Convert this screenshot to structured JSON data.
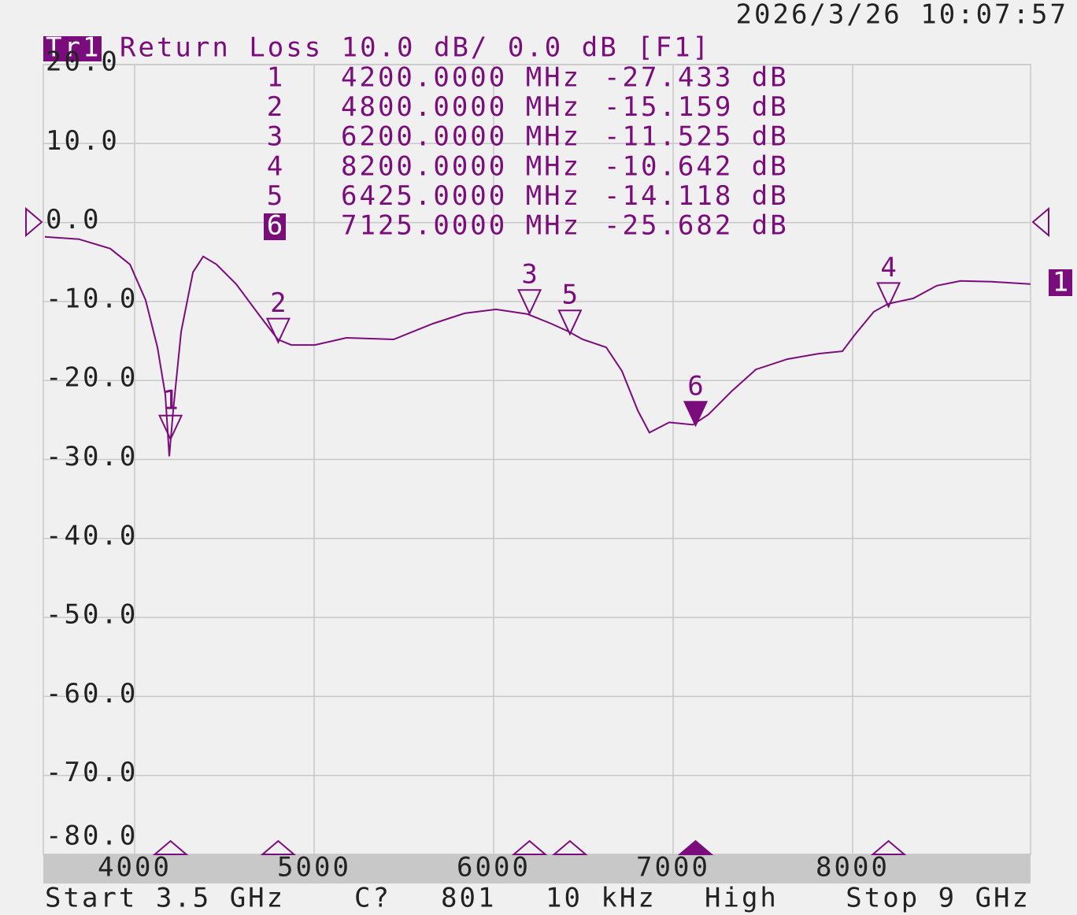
{
  "chart_data": {
    "type": "line",
    "timestamp": "2026/3/26 10:07:57",
    "trace_name": "Tr1",
    "title": "Return Loss 10.0 dB/ 0.0 dB [F1]",
    "trace_label": "1",
    "color": "#7b0c7b",
    "grid": true,
    "xlim": [
      3500,
      9000
    ],
    "xticks": [
      4000,
      5000,
      6000,
      7000,
      8000
    ],
    "ylim": [
      -80,
      20
    ],
    "yticks": [
      {
        "value": 20,
        "label": "20.0"
      },
      {
        "value": 10,
        "label": "10.0"
      },
      {
        "value": 0,
        "label": "0.0"
      },
      {
        "value": -10,
        "label": "-10.0"
      },
      {
        "value": -20,
        "label": "-20.0"
      },
      {
        "value": -30,
        "label": "-30.0"
      },
      {
        "value": -40,
        "label": "-40.0"
      },
      {
        "value": -50,
        "label": "-50.0"
      },
      {
        "value": -60,
        "label": "-60.0"
      },
      {
        "value": -70,
        "label": "-70.0"
      },
      {
        "value": -80,
        "label": "-80.0"
      }
    ],
    "x": [
      3500,
      3689,
      3864,
      3974,
      4061,
      4127,
      4171,
      4193,
      4215,
      4259,
      4325,
      4382,
      4456,
      4566,
      4697,
      4798,
      4873,
      5004,
      5180,
      5443,
      5662,
      5838,
      6013,
      6189,
      6320,
      6417,
      6496,
      6627,
      6715,
      6803,
      6868,
      6978,
      7110,
      7197,
      7329,
      7461,
      7636,
      7811,
      7943,
      8009,
      8118,
      8197,
      8338,
      8469,
      8601,
      8776,
      8991
    ],
    "values": [
      -1.8,
      -2.1,
      -3.3,
      -5.3,
      -9.8,
      -15.8,
      -21.8,
      -29.6,
      -23.8,
      -13.8,
      -6.3,
      -4.3,
      -5.3,
      -7.8,
      -11.8,
      -14.8,
      -15.5,
      -15.5,
      -14.6,
      -14.8,
      -12.8,
      -11.5,
      -11.0,
      -11.6,
      -12.8,
      -13.8,
      -14.8,
      -15.8,
      -18.8,
      -23.8,
      -26.6,
      -25.3,
      -25.6,
      -24.3,
      -21.3,
      -18.6,
      -17.3,
      -16.6,
      -16.3,
      -14.3,
      -11.3,
      -10.3,
      -9.6,
      -8.0,
      -7.4,
      -7.5,
      -7.8
    ],
    "markers": [
      {
        "id": 1,
        "x": 4200,
        "x_label": "4200.0000 MHz",
        "value": -27.433,
        "value_label": "-27.433 dB"
      },
      {
        "id": 2,
        "x": 4800,
        "x_label": "4800.0000 MHz",
        "value": -15.159,
        "value_label": "-15.159 dB"
      },
      {
        "id": 3,
        "x": 6200,
        "x_label": "6200.0000 MHz",
        "value": -11.525,
        "value_label": "-11.525 dB"
      },
      {
        "id": 4,
        "x": 8200,
        "x_label": "8200.0000 MHz",
        "value": -10.642,
        "value_label": "-10.642 dB"
      },
      {
        "id": 5,
        "x": 6425,
        "x_label": "6425.0000 MHz",
        "value": -14.118,
        "value_label": "-14.118 dB"
      },
      {
        "id": 6,
        "x": 7125,
        "x_label": "7125.0000 MHz",
        "value": -25.682,
        "value_label": "-25.682 dB",
        "active": true
      }
    ],
    "status": [
      "Start 3.5 GHz",
      "C?",
      "801",
      "10 kHz",
      "High",
      "Stop 9 GHz"
    ]
  }
}
